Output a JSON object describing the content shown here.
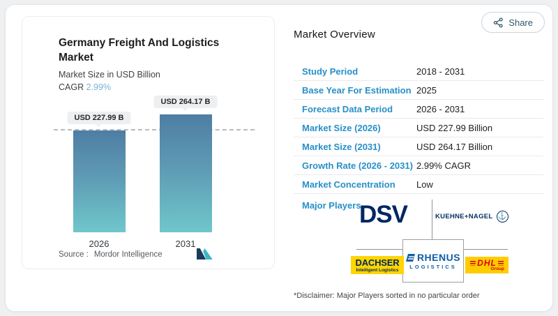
{
  "accent": {
    "label_blue": "#2690c8",
    "cagr_blue": "#79b2d6",
    "bar_top": "#4e7da4",
    "bar_bottom": "#6fc7cb",
    "dsv_navy": "#002664",
    "rhenus_blue": "#0e5fa5",
    "dhl_red": "#d40511",
    "logo_yellow": "#ffd502"
  },
  "share": {
    "label": "Share"
  },
  "chart_data": {
    "type": "bar",
    "title": "Germany Freight And Logistics Market",
    "subtitle": "Market Size in USD Billion",
    "cagr_label": "CAGR",
    "cagr_value": "2.99%",
    "categories": [
      "2026",
      "2031"
    ],
    "values": [
      227.99,
      264.17
    ],
    "value_labels": [
      "USD 227.99 B",
      "USD 264.17 B"
    ],
    "ylim": [
      0,
      280
    ],
    "reference_line": 227.99,
    "grid": "off",
    "legend": "none",
    "source_label": "Source :",
    "source": "Mordor Intelligence"
  },
  "overview": {
    "title": "Market Overview",
    "rows": [
      {
        "label": "Study Period",
        "value": "2018 - 2031"
      },
      {
        "label": "Base Year For Estimation",
        "value": "2025"
      },
      {
        "label": "Forecast Data Period",
        "value": "2026 - 2031"
      },
      {
        "label": "Market Size (2026)",
        "value": "USD 227.99 Billion"
      },
      {
        "label": "Market Size (2031)",
        "value": "USD 264.17 Billion"
      },
      {
        "label": "Growth Rate (2026 - 2031)",
        "value": "2.99% CAGR"
      },
      {
        "label": "Market Concentration",
        "value": "Low"
      }
    ],
    "major_players_label": "Major Players",
    "players": [
      "DSV",
      "KUEHNE+NAGEL",
      "DACHSER",
      "RHENUS LOGISTICS",
      "DHL Group"
    ],
    "disclaimer": "*Disclaimer: Major Players sorted in no particular order"
  },
  "logos": {
    "dsv": {
      "text": "DSV"
    },
    "kuehne_nagel": {
      "text": "KUEHNE+NAGEL",
      "icon": "anchor-icon"
    },
    "dachser": {
      "text": "DACHSER",
      "tagline": "Intelligent Logistics"
    },
    "rhenus": {
      "text": "RHENUS",
      "subtext": "LOGISTICS"
    },
    "dhl": {
      "text": "DHL",
      "subtext": "Group"
    }
  }
}
